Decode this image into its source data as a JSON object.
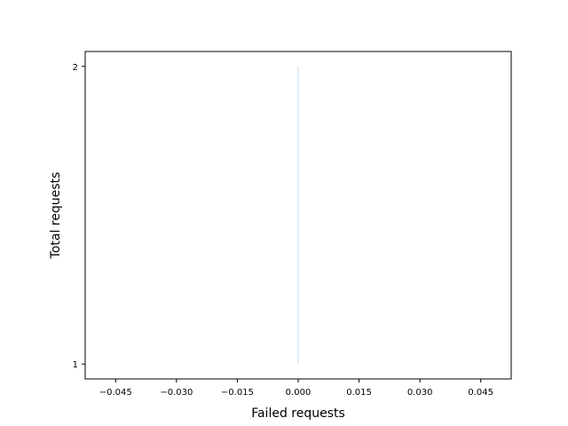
{
  "chart_data": {
    "type": "line",
    "title": "",
    "xlabel": "Failed requests",
    "ylabel": "Total requests",
    "xlim": [
      -0.0525,
      0.0525
    ],
    "ylim": [
      0.95,
      2.05
    ],
    "xticks": [
      -0.045,
      -0.03,
      -0.015,
      0.0,
      0.015,
      0.03,
      0.045
    ],
    "xtick_labels": [
      "−0.045",
      "−0.030",
      "−0.015",
      "0.000",
      "0.015",
      "0.030",
      "0.045"
    ],
    "yticks": [
      1,
      2
    ],
    "ytick_labels": [
      "1",
      "2"
    ],
    "grid": false,
    "series": [
      {
        "x": [
          0,
          0
        ],
        "y": [
          1,
          2
        ],
        "color": "#c6dbef"
      }
    ]
  }
}
